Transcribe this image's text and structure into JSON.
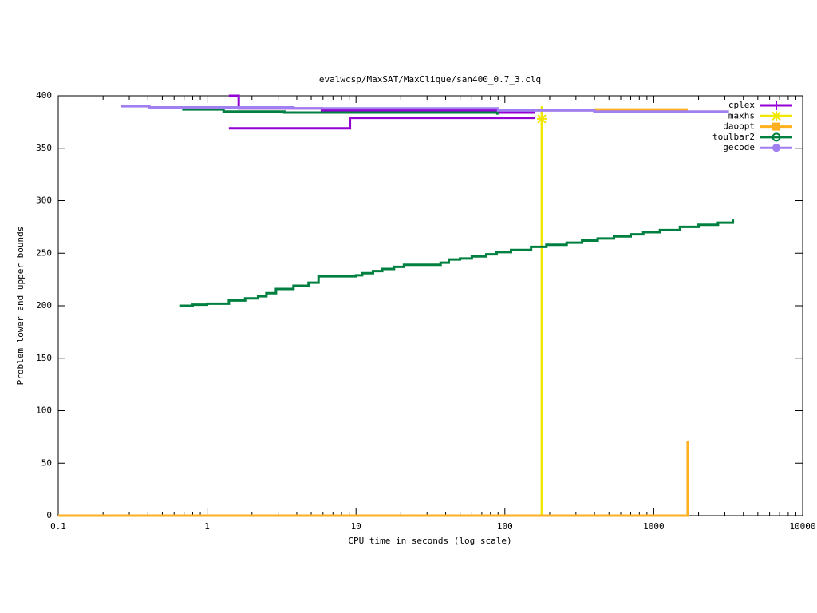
{
  "chart_data": {
    "type": "line",
    "step": true,
    "title": "evalwcsp/MaxSAT/MaxClique/san400_0.7_3.clq",
    "x_label": "CPU time in seconds (log scale)",
    "y_label": "Problem lower and upper bounds",
    "x_log": true,
    "xlim": [
      0.1,
      10000
    ],
    "xticks": [
      0.1,
      1,
      10,
      100,
      1000,
      10000
    ],
    "ylim": [
      0,
      400
    ],
    "yticks": [
      0,
      50,
      100,
      150,
      200,
      250,
      300,
      350,
      400
    ],
    "legend": "top-right",
    "series": [
      {
        "name": "cplex",
        "color": "#9400d3",
        "marker": "plus",
        "x": [
          1.4,
          1.63,
          5.9,
          92,
          160,
          null,
          1.4,
          9.1,
          160
        ],
        "values": [
          400,
          388,
          386,
          384,
          384,
          null,
          369,
          379,
          379
        ]
      },
      {
        "name": "maxhs",
        "color": "#f0e800",
        "marker": "star",
        "x": [
          177,
          177
        ],
        "values": [
          0,
          390
        ],
        "points": [
          {
            "x": 177,
            "y": 378
          }
        ]
      },
      {
        "name": "daoopt",
        "color": "#ffb020",
        "marker": "square",
        "x": [
          0.1,
          1690,
          1690,
          null,
          399,
          1690
        ],
        "values": [
          0,
          0,
          71,
          null,
          387,
          387
        ]
      },
      {
        "name": "toulbar2",
        "color": "#008040",
        "marker": "circle-open",
        "x": [
          0.68,
          1.29,
          3.3,
          89,
          89,
          null,
          0.65,
          0.8,
          1.0,
          1.4,
          1.8,
          2.2,
          2.5,
          2.9,
          3.8,
          4.8,
          5.6,
          10,
          11,
          13,
          15,
          18,
          21,
          37,
          42,
          50,
          60,
          75,
          88,
          110,
          150,
          190,
          260,
          330,
          420,
          540,
          700,
          850,
          1100,
          1500,
          2000,
          2700,
          3400
        ],
        "values": [
          387,
          385,
          384,
          384,
          382,
          null,
          200,
          201,
          202,
          205,
          207,
          209,
          212,
          216,
          219,
          222,
          228,
          229,
          231,
          233,
          235,
          237,
          239,
          241,
          244,
          245,
          247,
          249,
          251,
          253,
          256,
          258,
          260,
          262,
          264,
          266,
          268,
          270,
          272,
          275,
          277,
          279,
          282
        ]
      },
      {
        "name": "gecode",
        "color": "#a080f0",
        "marker": "circle",
        "x": [
          0.265,
          0.41,
          3.8,
          90,
          399,
          3200
        ],
        "values": [
          390,
          389,
          388,
          386,
          385,
          385
        ]
      }
    ]
  }
}
